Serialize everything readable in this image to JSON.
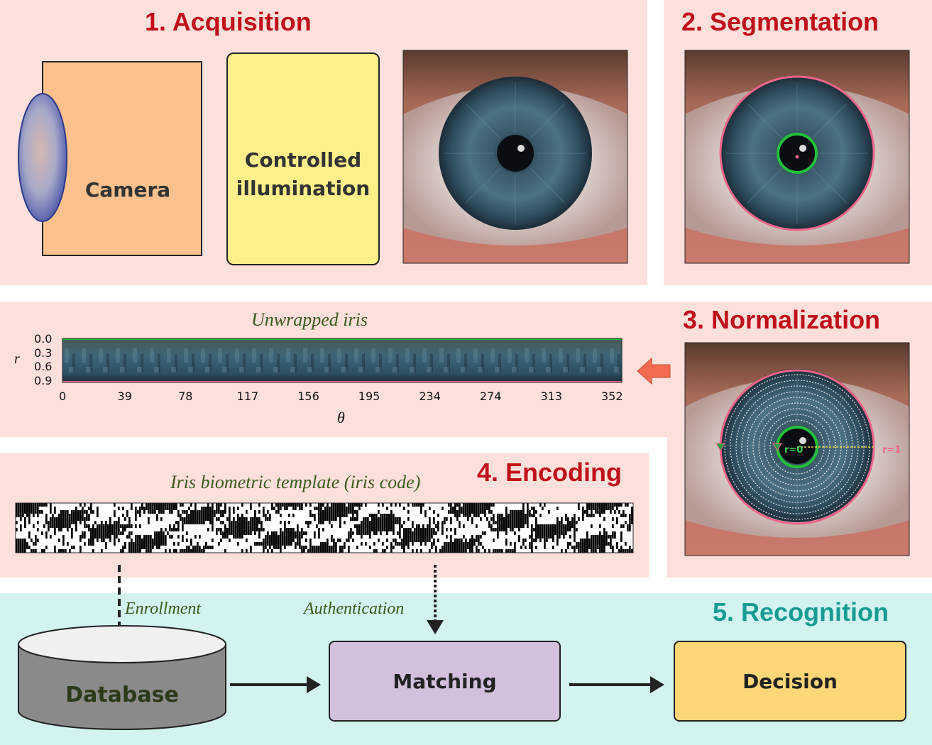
{
  "stages": {
    "acquisition": "1. Acquisition",
    "segmentation": "2. Segmentation",
    "normalization": "3. Normalization",
    "encoding": "4. Encoding",
    "recognition": "5. Recognition"
  },
  "acquisition": {
    "camera_label": "Camera",
    "illumination_label_line1": "Controlled",
    "illumination_label_line2": "illumination"
  },
  "normalization": {
    "r0_label": "r=0",
    "r1_label": "r=1"
  },
  "unwrapped": {
    "title": "Unwrapped  iris",
    "r_axis_label": "r",
    "theta_axis_label": "θ",
    "r_ticks": [
      "0.0",
      "0.3",
      "0.6",
      "0.9"
    ],
    "theta_ticks": [
      "0",
      "39",
      "78",
      "117",
      "156",
      "195",
      "234",
      "274",
      "313",
      "352"
    ]
  },
  "encoding": {
    "template_title": "Iris biometric template (iris code)"
  },
  "recognition": {
    "enrollment_label": "Enrollment",
    "authentication_label": "Authentication",
    "database_label": "Database",
    "matching_label": "Matching",
    "decision_label": "Decision"
  },
  "colors": {
    "panel_pink": "#fde0dc",
    "panel_cyan": "#d2f3f0",
    "title_red": "#c0101a",
    "title_teal": "#179c94",
    "camera_box": "#fcc18d",
    "illumination_box": "#fdf08a",
    "matching_box": "#d2c0dc",
    "decision_box": "#fdd678",
    "database_gray": "#8a8a8a",
    "segmentation_pupil_circle": "#22c03a",
    "segmentation_iris_circle": "#f0648a",
    "arrow_orange": "#f26b50"
  }
}
